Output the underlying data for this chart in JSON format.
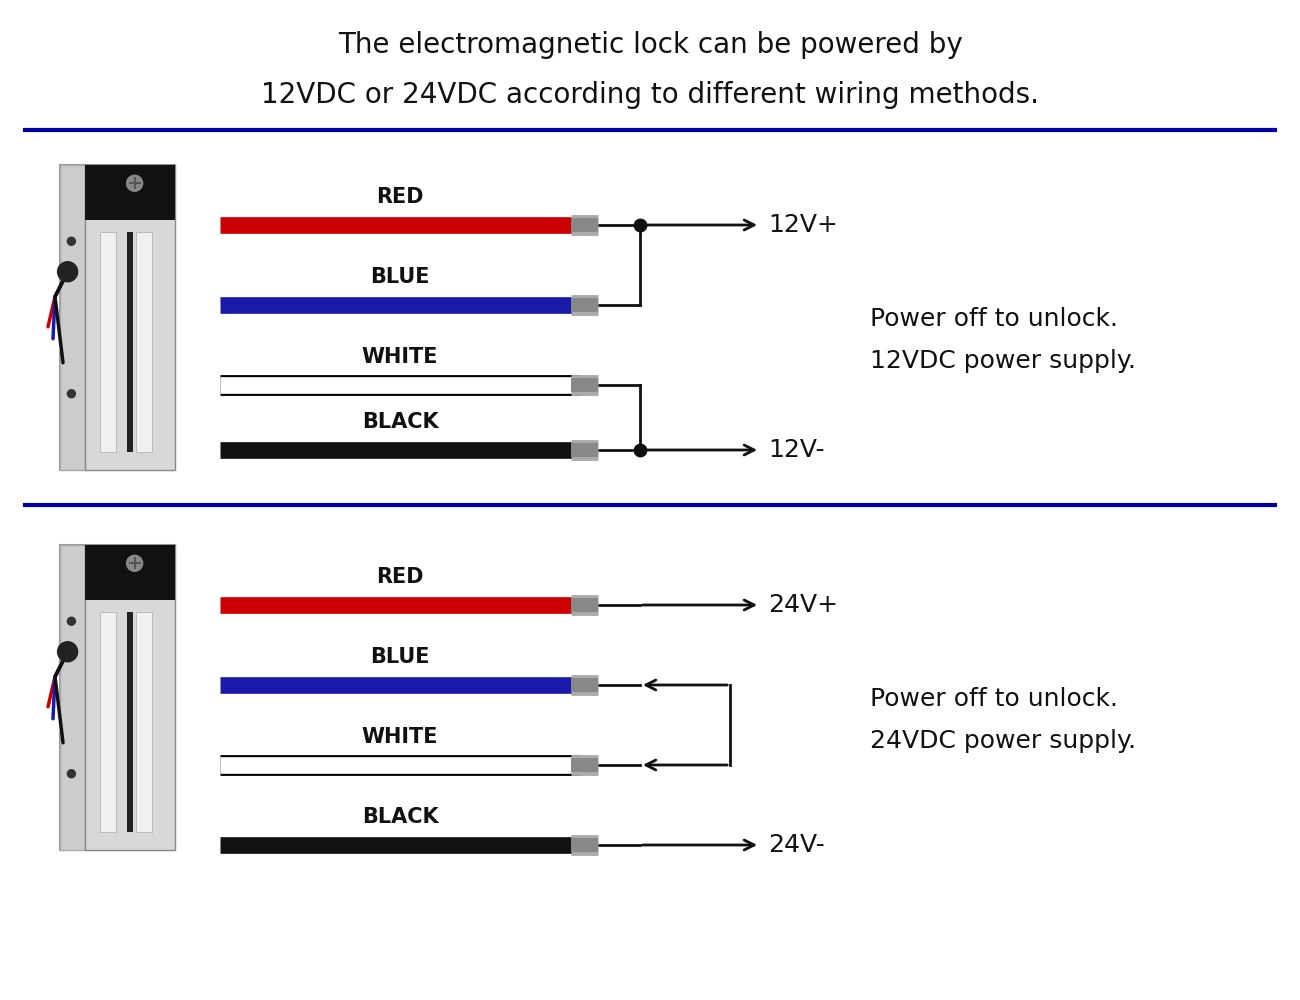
{
  "title_line1": "The electromagnetic lock can be powered by",
  "title_line2": "12VDC or 24VDC according to different wiring methods.",
  "title_fontsize": 20,
  "bg_color": "#ffffff",
  "divider_color": "#0000aa",
  "wire_lw": 12,
  "connector_color": "#aaaaaa",
  "line_lw": 2.0,
  "dot_size": 9,
  "label_fontsize": 15,
  "voltage_fontsize": 18,
  "note_fontsize": 18,
  "section1": {
    "note": "Power off to unlock.\n12VDC power supply."
  },
  "section2": {
    "note": "Power off to unlock.\n24VDC power supply."
  },
  "wires": [
    {
      "label": "RED",
      "color": "#cc0000"
    },
    {
      "label": "BLUE",
      "color": "#1a1aaa"
    },
    {
      "label": "WHITE",
      "color": "#ffffff"
    },
    {
      "label": "BLACK",
      "color": "#111111"
    }
  ]
}
